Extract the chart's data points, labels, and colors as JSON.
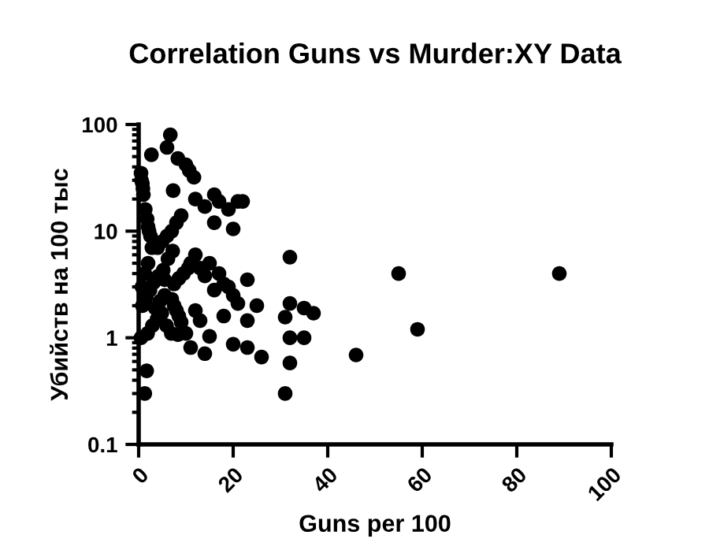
{
  "chart_data": {
    "type": "scatter",
    "title": "Correlation Guns vs Murder:XY Data",
    "xlabel": "Guns per 100",
    "ylabel": "Убийств на 100 тыс",
    "log": "y",
    "xlim": [
      0,
      100
    ],
    "xticks": [
      0,
      20,
      40,
      60,
      80,
      100
    ],
    "ylim": [
      0.1,
      100
    ],
    "yticks": [
      0.1,
      1,
      10,
      100
    ],
    "grid": false,
    "legend": false,
    "marker": "circle",
    "color": "#000000",
    "x": [
      89,
      55,
      59,
      46,
      32,
      32,
      35,
      37,
      31,
      32,
      35,
      32,
      31,
      6.7,
      6,
      2.7,
      8.3,
      10,
      10.7,
      11.7,
      7.3,
      19,
      21,
      22,
      17,
      14,
      16,
      20,
      23,
      19,
      16,
      21,
      25,
      18,
      12,
      13,
      23,
      15,
      20,
      23,
      26,
      14,
      11,
      8.3,
      1.7,
      1.3,
      0.5,
      0.8,
      1,
      2,
      2.5,
      0.6,
      0.9,
      1.4,
      1.8,
      2.2,
      2.8,
      5.5,
      7,
      7.5,
      8,
      8.5,
      9,
      10,
      0.7,
      1.3,
      2,
      4,
      5,
      6,
      7,
      8,
      9,
      0.5,
      3.5,
      4.5,
      5.5,
      7.5,
      8.5,
      9.5,
      10.5,
      11,
      12,
      0.8,
      1.6,
      2.4,
      3.2,
      4.2,
      5.2,
      6.2,
      7.2,
      1.9,
      2.9,
      3.9,
      4.9,
      5.9,
      6.9,
      13,
      14,
      15,
      17,
      18,
      20,
      12,
      16
    ],
    "values": [
      4,
      4,
      1.2,
      0.69,
      5.7,
      2.1,
      1.9,
      1.7,
      1.56,
      1,
      1,
      0.58,
      0.3,
      80,
      61,
      52,
      48,
      42,
      37,
      32,
      24,
      16,
      19,
      19,
      19,
      17,
      12,
      10.5,
      3.5,
      3,
      2.8,
      2.1,
      2,
      1.6,
      1.8,
      1.45,
      1.45,
      1.03,
      0.87,
      0.81,
      0.66,
      0.71,
      0.81,
      1.07,
      0.49,
      0.3,
      35,
      28,
      22,
      11,
      9,
      30,
      25,
      16,
      13,
      10,
      7,
      3.5,
      2.3,
      2,
      1.8,
      1.6,
      1.4,
      1.1,
      3,
      4,
      5,
      7,
      8,
      9,
      10,
      12,
      14,
      1,
      1.9,
      2.2,
      2.5,
      3.2,
      3.6,
      4,
      4.5,
      5,
      6,
      2,
      2.4,
      2.8,
      3.3,
      3.8,
      4.3,
      5.5,
      6.5,
      1.1,
      1.3,
      1.5,
      1.7,
      1.3,
      1.1,
      4.5,
      3.8,
      5,
      4,
      3.2,
      2.5,
      20,
      22
    ]
  }
}
